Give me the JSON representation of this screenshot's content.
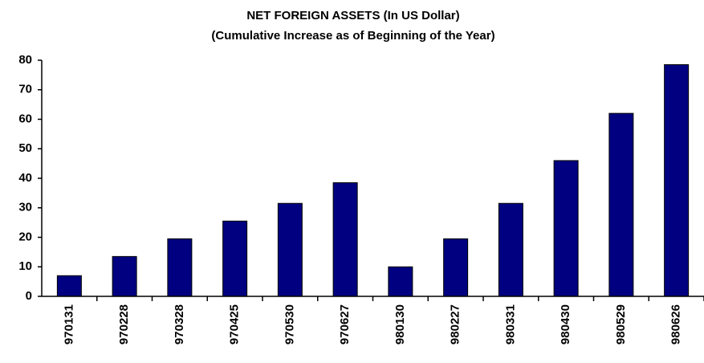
{
  "chart_data": {
    "type": "bar",
    "title": "NET FOREIGN ASSETS  (In US Dollar)",
    "subtitle": "(Cumulative Increase as of Beginning of the Year)",
    "categories": [
      "970131",
      "970228",
      "970328",
      "970425",
      "970530",
      "970627",
      "980130",
      "980227",
      "980331",
      "980430",
      "980529",
      "980626"
    ],
    "values": [
      7,
      13.5,
      19.5,
      25.5,
      31.5,
      38.5,
      10,
      19.5,
      31.5,
      46,
      62,
      78.5
    ],
    "color": "#000080",
    "ylim": [
      0,
      80
    ],
    "yticks": [
      0,
      10,
      20,
      30,
      40,
      50,
      60,
      70,
      80
    ],
    "grid": false
  }
}
